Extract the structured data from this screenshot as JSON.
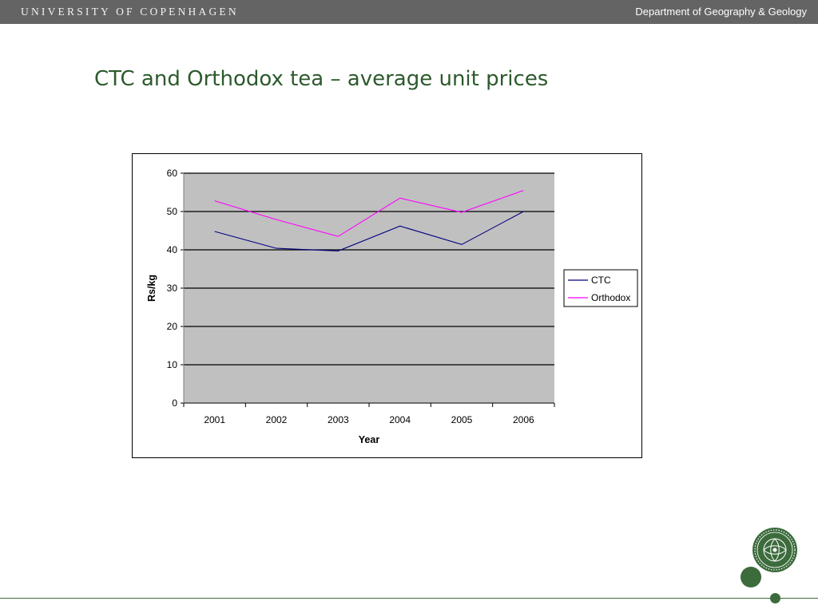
{
  "header": {
    "university": "UNIVERSITY OF COPENHAGEN",
    "department": "Department of Geography & Geology",
    "background_color": "#646464"
  },
  "slide": {
    "title": "CTC and Orthodox tea – average unit prices",
    "title_color": "#2d5a2d"
  },
  "chart_data": {
    "type": "line",
    "title": "",
    "xlabel": "Year",
    "ylabel": "Rs/kg",
    "categories": [
      "2001",
      "2002",
      "2003",
      "2004",
      "2005",
      "2006"
    ],
    "ylim": [
      0,
      60
    ],
    "yticks": [
      0,
      10,
      20,
      30,
      40,
      50,
      60
    ],
    "grid": true,
    "plot_background": "#c0c0c0",
    "legend_position": "right",
    "series": [
      {
        "name": "CTC",
        "color": "#000080",
        "values": [
          44.8,
          40.4,
          39.7,
          46.2,
          41.4,
          50.0
        ]
      },
      {
        "name": "Orthodox",
        "color": "#ff00ff",
        "values": [
          52.8,
          47.9,
          43.5,
          53.5,
          49.8,
          55.5
        ]
      }
    ]
  },
  "branding": {
    "accent_color": "#3c6b3c",
    "seal_icon": "university-seal-icon"
  }
}
